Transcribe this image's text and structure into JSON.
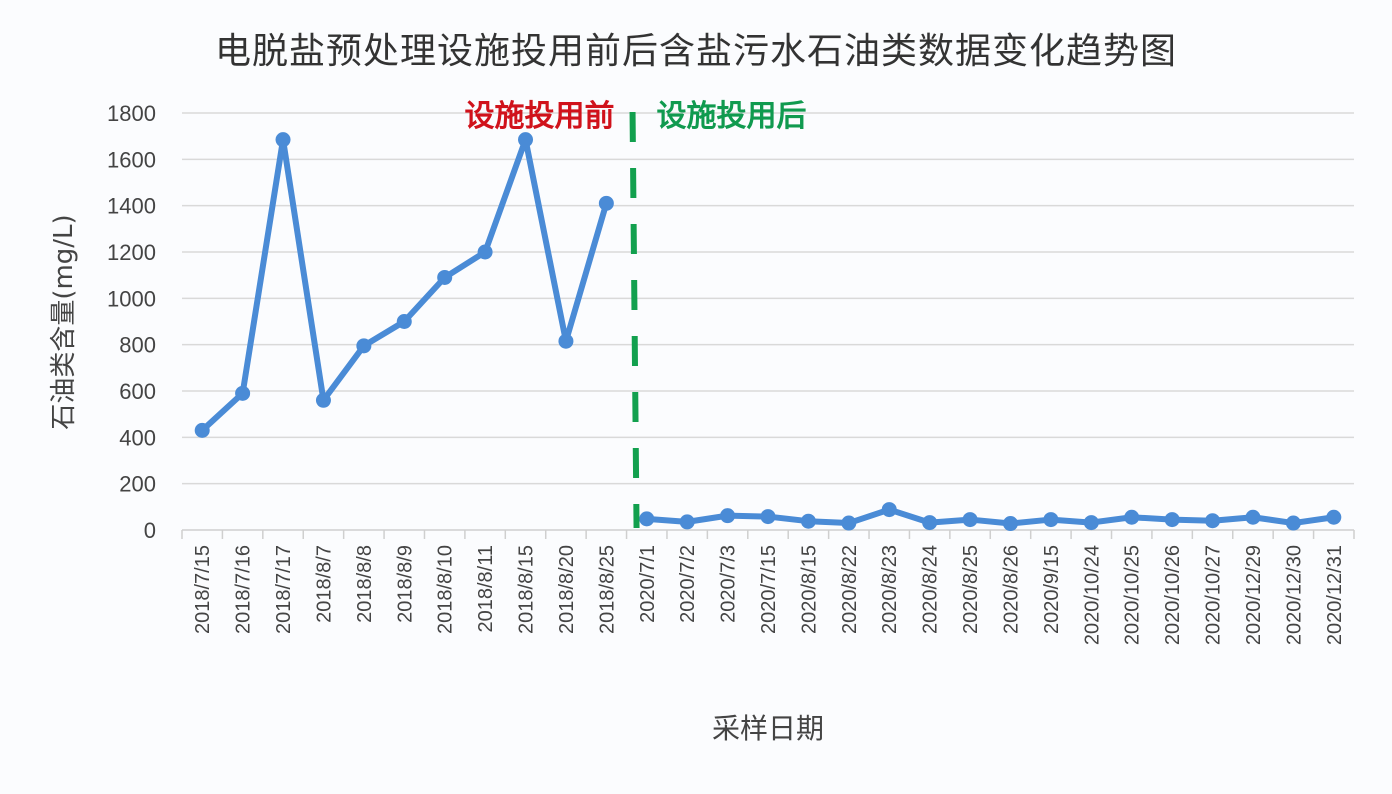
{
  "chart_data": {
    "type": "line",
    "title": "电脱盐预处理设施投用前后含盐污水石油类数据变化趋势图",
    "xlabel": "采样日期",
    "ylabel": "石油类含量(mg/L)",
    "ylim": [
      0,
      1800
    ],
    "yticks": [
      "0",
      "200",
      "400",
      "600",
      "800",
      "1000",
      "1200",
      "1400",
      "1600",
      "1800"
    ],
    "grid": true,
    "legend": "none",
    "categories": [
      "2018/7/15",
      "2018/7/16",
      "2018/7/17",
      "2018/8/7",
      "2018/8/8",
      "2018/8/9",
      "2018/8/10",
      "2018/8/11",
      "2018/8/15",
      "2018/8/20",
      "2018/8/25",
      "2020/7/1",
      "2020/7/2",
      "2020/7/3",
      "2020/7/15",
      "2020/8/15",
      "2020/8/22",
      "2020/8/23",
      "2020/8/24",
      "2020/8/25",
      "2020/8/26",
      "2020/9/15",
      "2020/10/24",
      "2020/10/25",
      "2020/10/26",
      "2020/10/27",
      "2020/12/29",
      "2020/12/30",
      "2020/12/31"
    ],
    "series": [
      {
        "name": "设施投用前",
        "values": [
          430,
          590,
          1685,
          560,
          795,
          900,
          1090,
          1200,
          1685,
          815,
          1410
        ]
      },
      {
        "name": "设施投用后",
        "values": [
          48,
          35,
          62,
          58,
          38,
          30,
          88,
          32,
          45,
          28,
          45,
          32,
          55,
          45,
          40,
          55,
          30,
          55
        ]
      }
    ],
    "annotations": [
      {
        "text": "设施投用前",
        "color": "#d0121b"
      },
      {
        "text": "设施投用后",
        "color": "#109a4f"
      }
    ],
    "divider": {
      "style": "dashed",
      "color": "#12a04e",
      "between": [
        "2018/8/25",
        "2020/7/1"
      ]
    },
    "line_color": "#4a8bd6"
  }
}
